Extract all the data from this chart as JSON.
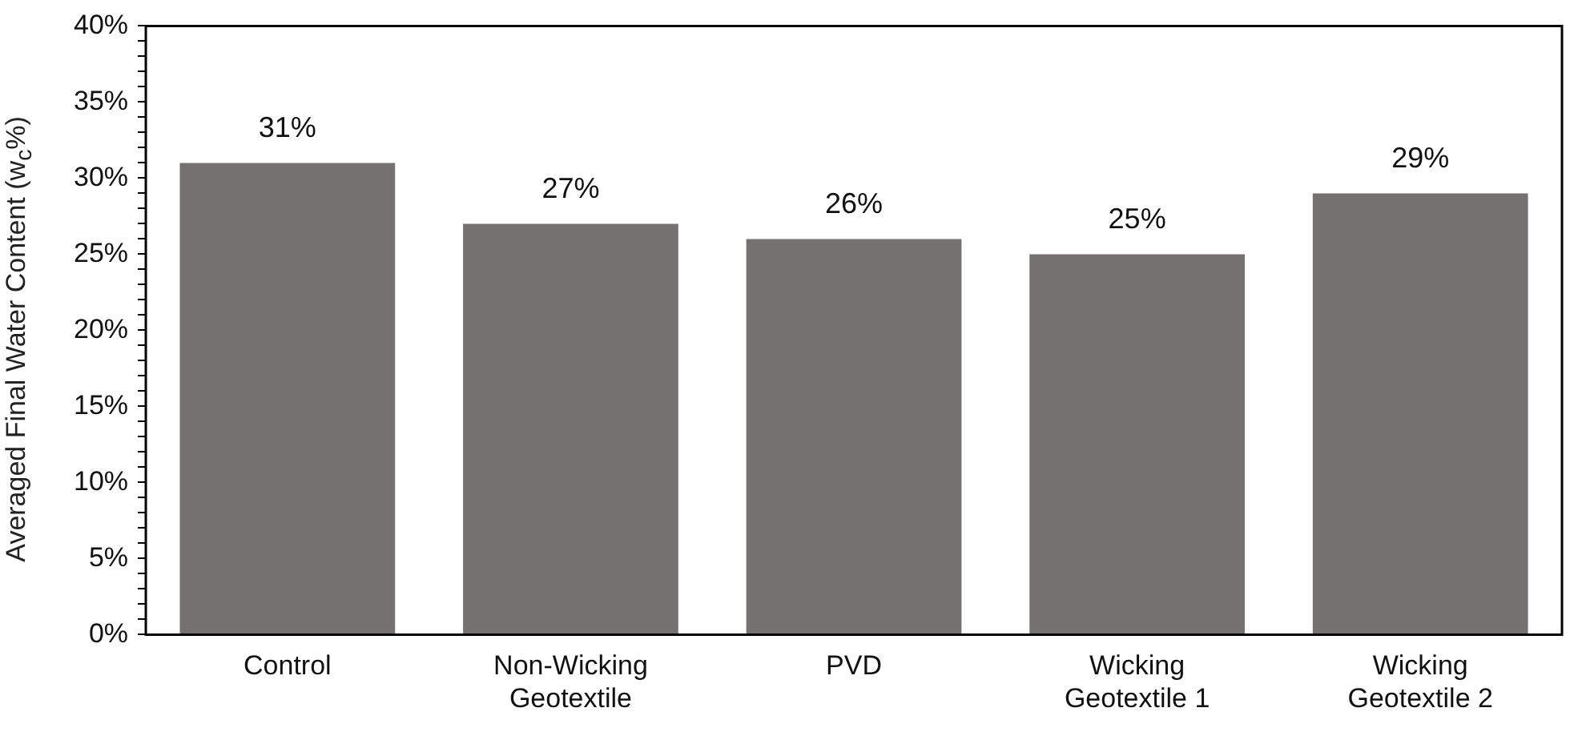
{
  "chart_data": {
    "type": "bar",
    "ylabel": "Averaged Final Water Content (w$_{c}$%)",
    "categories": [
      "Control",
      "Non-Wicking\nGeotextile",
      "PVD",
      "Wicking\nGeotextile 1",
      "Wicking\nGeotextile 2"
    ],
    "values": [
      31,
      27,
      26,
      25,
      29
    ],
    "value_labels": [
      "31%",
      "27%",
      "26%",
      "25%",
      "29%"
    ],
    "color": "#767171",
    "ylim": [
      0,
      40
    ],
    "yticks": [
      {
        "value": 0,
        "label": "0%"
      },
      {
        "value": 1,
        "label": null
      },
      {
        "value": 2,
        "label": null
      },
      {
        "value": 3,
        "label": null
      },
      {
        "value": 4,
        "label": null
      },
      {
        "value": 5,
        "label": "5%"
      },
      {
        "value": 6,
        "label": null
      },
      {
        "value": 7,
        "label": null
      },
      {
        "value": 8,
        "label": null
      },
      {
        "value": 9,
        "label": null
      },
      {
        "value": 10,
        "label": "10%"
      },
      {
        "value": 11,
        "label": null
      },
      {
        "value": 12,
        "label": null
      },
      {
        "value": 13,
        "label": null
      },
      {
        "value": 14,
        "label": null
      },
      {
        "value": 15,
        "label": "15%"
      },
      {
        "value": 16,
        "label": null
      },
      {
        "value": 17,
        "label": null
      },
      {
        "value": 18,
        "label": null
      },
      {
        "value": 19,
        "label": null
      },
      {
        "value": 20,
        "label": "20%"
      },
      {
        "value": 21,
        "label": null
      },
      {
        "value": 22,
        "label": null
      },
      {
        "value": 23,
        "label": null
      },
      {
        "value": 24,
        "label": null
      },
      {
        "value": 25,
        "label": "25%"
      },
      {
        "value": 26,
        "label": null
      },
      {
        "value": 27,
        "label": null
      },
      {
        "value": 28,
        "label": null
      },
      {
        "value": 29,
        "label": null
      },
      {
        "value": 30,
        "label": "30%"
      },
      {
        "value": 31,
        "label": null
      },
      {
        "value": 32,
        "label": null
      },
      {
        "value": 33,
        "label": null
      },
      {
        "value": 34,
        "label": null
      },
      {
        "value": 35,
        "label": "35%"
      },
      {
        "value": 36,
        "label": null
      },
      {
        "value": 37,
        "label": null
      },
      {
        "value": 38,
        "label": null
      },
      {
        "value": 39,
        "label": null
      },
      {
        "value": 40,
        "label": "40%"
      }
    ],
    "grid": false,
    "legend": false
  }
}
